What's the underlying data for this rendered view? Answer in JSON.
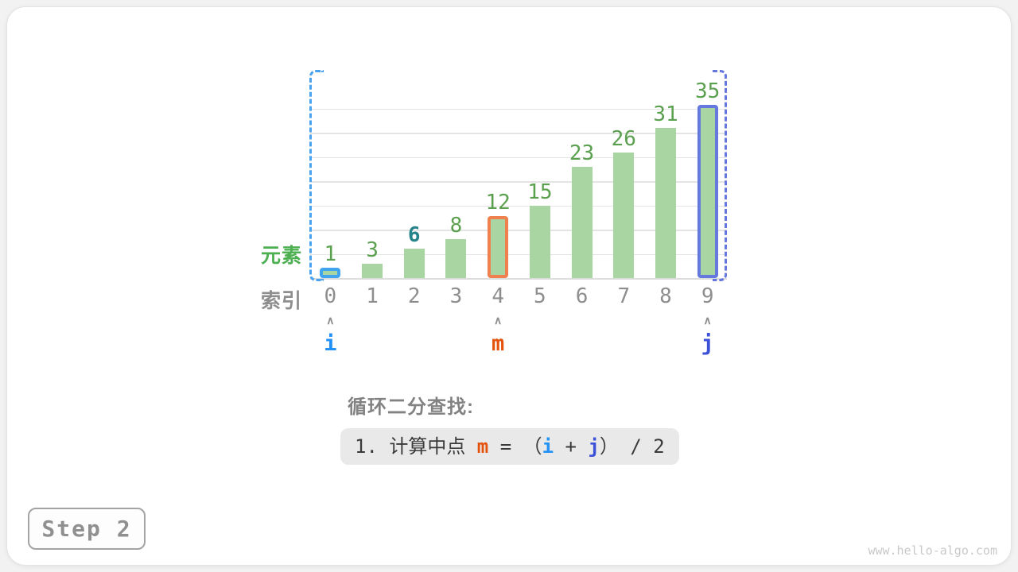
{
  "chart_data": {
    "type": "bar",
    "title": "",
    "xlabel": "索引",
    "ylabel": "元素",
    "categories": [
      "0",
      "1",
      "2",
      "3",
      "4",
      "5",
      "6",
      "7",
      "8",
      "9"
    ],
    "values": [
      1,
      3,
      6,
      8,
      12,
      15,
      23,
      26,
      31,
      35
    ],
    "ylim": [
      0,
      35
    ],
    "gridline_step": 5,
    "grid": "on",
    "bar_fill_color": "#a8d5a1",
    "value_label_color": "#5ba04f",
    "highlighted_value": {
      "index": 2,
      "value": "6",
      "color": "#26838a"
    },
    "highlighted_bars": [
      {
        "index": 0,
        "outline_color": "#41a4ee",
        "pointer": "i"
      },
      {
        "index": 4,
        "outline_color": "#f0814e",
        "pointer": "m"
      },
      {
        "index": 9,
        "outline_color": "#6478de",
        "pointer": "j"
      }
    ],
    "range_brackets": [
      {
        "side": "left",
        "color": "#49a2ef"
      },
      {
        "side": "right",
        "color": "#6478de"
      }
    ]
  },
  "axis_labels": {
    "element": "元素",
    "index": "索引"
  },
  "pointers": [
    {
      "name": "i",
      "index": 0,
      "color": "#2492f4",
      "caret": "∧"
    },
    {
      "name": "m",
      "index": 4,
      "color": "#e4530b",
      "caret": "∧"
    },
    {
      "name": "j",
      "index": 9,
      "color": "#3c51d7",
      "caret": "∧"
    }
  ],
  "caption": {
    "title": "循环二分查找:",
    "formula_segments": [
      {
        "text": "1. 计算中点 ",
        "color": "#3b3b3b",
        "bold": false
      },
      {
        "text": "m",
        "color": "#e4530b",
        "bold": true
      },
      {
        "text": " = （",
        "color": "#3b3b3b",
        "bold": false
      },
      {
        "text": "i",
        "color": "#2492f4",
        "bold": true
      },
      {
        "text": " + ",
        "color": "#3b3b3b",
        "bold": false
      },
      {
        "text": "j",
        "color": "#3c51d7",
        "bold": true
      },
      {
        "text": "） / 2",
        "color": "#3b3b3b",
        "bold": false
      }
    ]
  },
  "step_badge": {
    "label": "Step 2"
  },
  "watermark": "www.hello-algo.com"
}
